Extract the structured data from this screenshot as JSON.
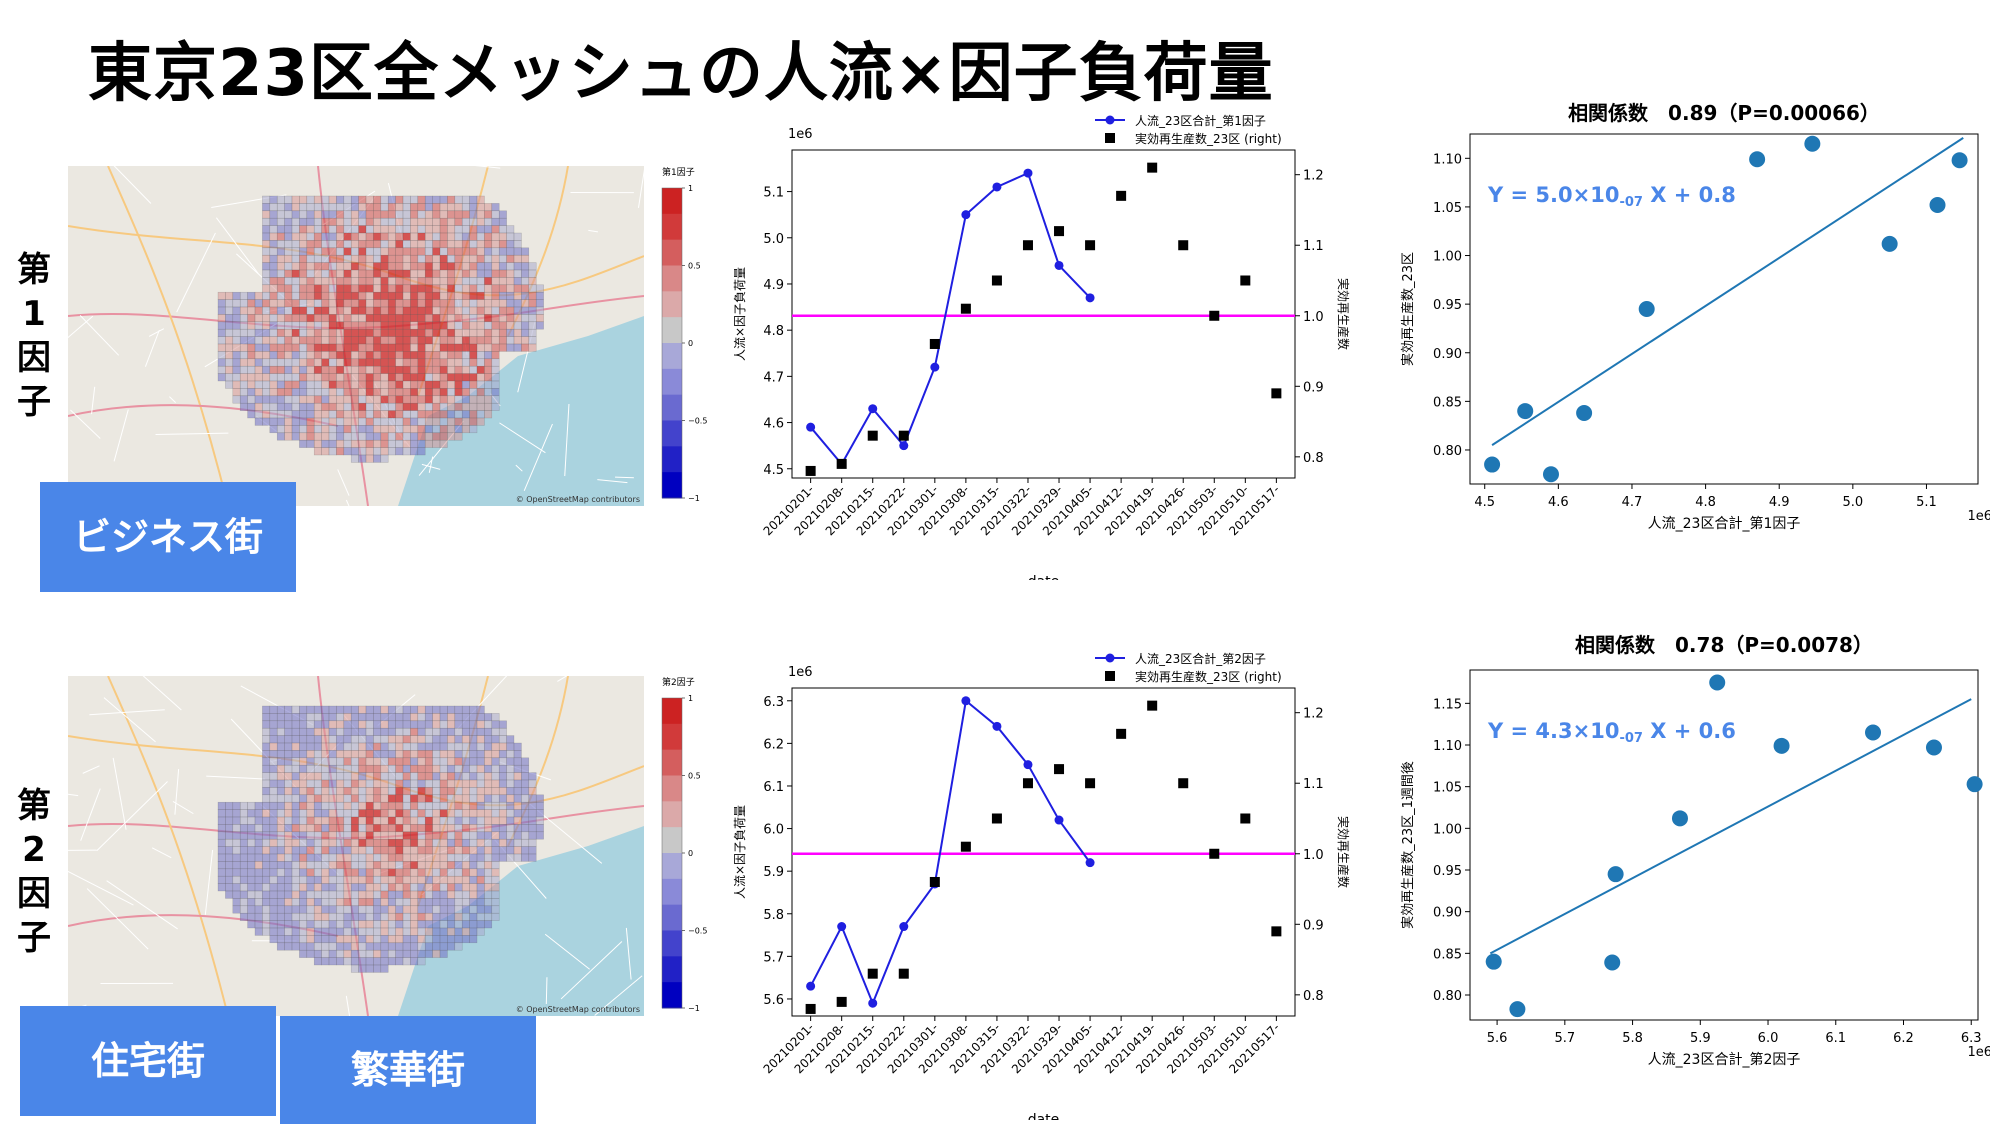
{
  "title": "東京23区全メッシュの人流×因子負荷量",
  "colors": {
    "line": "#1f1fe0",
    "hline": "#ff00ff",
    "scatter": "#1f77b4",
    "callout": "#4a86e8",
    "equation": "#4a86e8"
  },
  "rows": [
    {
      "factor_label": [
        "第",
        "1",
        "因",
        "子"
      ],
      "map": {
        "colorbar_title": "第1因子",
        "colorbar_ticks": [
          "1",
          "0.5",
          "0",
          "−0.5",
          "−1"
        ],
        "attribution": "© OpenStreetMap contributors",
        "callouts": [
          "ビジネス街"
        ]
      }
    },
    {
      "factor_label": [
        "第",
        "2",
        "因",
        "子"
      ],
      "map": {
        "colorbar_title": "第2因子",
        "colorbar_ticks": [
          "1",
          "0.5",
          "0",
          "−0.5",
          "−1"
        ],
        "attribution": "© OpenStreetMap contributors",
        "callouts": [
          "住宅街",
          "繁華街"
        ]
      }
    }
  ],
  "chart_data": [
    {
      "type": "line",
      "x": [
        "20210201-",
        "20210208-",
        "20210215-",
        "20210222-",
        "20210301-",
        "20210308-",
        "20210315-",
        "20210322-",
        "20210329-",
        "20210405-",
        "20210412-",
        "20210419-",
        "20210426-",
        "20210503-",
        "20210510-",
        "20210517-"
      ],
      "xlabel": "date",
      "ylabel": "人流×因子負荷量",
      "y2label": "実効再生産数",
      "offset_label": "1e6",
      "yticks": [
        "4.5",
        "4.6",
        "4.7",
        "4.8",
        "4.9",
        "5.0",
        "5.1"
      ],
      "ylim": [
        4.48,
        5.19
      ],
      "y2ticks": [
        "0.8",
        "0.9",
        "1.0",
        "1.1",
        "1.2"
      ],
      "y2lim": [
        0.77,
        1.235
      ],
      "hline_right": 1.0,
      "legend": [
        "人流_23区合計_第1因子",
        "実効再生産数_23区 (right)"
      ],
      "series": [
        {
          "name": "人流_23区合計_第1因子",
          "axis": "left",
          "values": [
            4.59,
            4.51,
            4.63,
            4.55,
            4.72,
            5.05,
            5.11,
            5.14,
            4.94,
            4.87,
            null,
            null,
            null,
            null,
            null,
            null
          ]
        },
        {
          "name": "実効再生産数_23区 (right)",
          "axis": "right",
          "values": [
            0.78,
            0.79,
            0.83,
            0.83,
            0.96,
            1.01,
            1.05,
            1.1,
            1.12,
            1.1,
            1.17,
            1.21,
            1.1,
            1.0,
            1.05,
            0.89
          ]
        }
      ]
    },
    {
      "type": "scatter",
      "title": "相関係数　0.89（P=0.00066）",
      "xlabel": "人流_23区合計_第1因子",
      "ylabel": "実効再生産数_23区",
      "offset_label": "1e6",
      "xticks": [
        "4.5",
        "4.6",
        "4.7",
        "4.8",
        "4.9",
        "5.0",
        "5.1"
      ],
      "xlim": [
        4.48,
        5.17
      ],
      "yticks": [
        "0.80",
        "0.85",
        "0.90",
        "0.95",
        "1.00",
        "1.05",
        "1.10"
      ],
      "ylim": [
        0.765,
        1.125
      ],
      "equation": {
        "lhs": "Y = 5.0×10",
        "exp": "-07",
        "rhs": " X + 0.8"
      },
      "fit": {
        "x": [
          4.51,
          5.15
        ],
        "y": [
          0.805,
          1.121
        ]
      },
      "points": [
        [
          4.51,
          0.785
        ],
        [
          4.555,
          0.84
        ],
        [
          4.59,
          0.775
        ],
        [
          4.635,
          0.838
        ],
        [
          4.72,
          0.945
        ],
        [
          4.87,
          1.099
        ],
        [
          4.945,
          1.115
        ],
        [
          5.05,
          1.012
        ],
        [
          5.115,
          1.052
        ],
        [
          5.145,
          1.098
        ]
      ]
    },
    {
      "type": "line",
      "x": [
        "20210201-",
        "20210208-",
        "20210215-",
        "20210222-",
        "20210301-",
        "20210308-",
        "20210315-",
        "20210322-",
        "20210329-",
        "20210405-",
        "20210412-",
        "20210419-",
        "20210426-",
        "20210503-",
        "20210510-",
        "20210517-"
      ],
      "xlabel": "date",
      "ylabel": "人流×因子負荷量",
      "y2label": "実効再生産数",
      "offset_label": "1e6",
      "yticks": [
        "5.6",
        "5.7",
        "5.8",
        "5.9",
        "6.0",
        "6.1",
        "6.2",
        "6.3"
      ],
      "ylim": [
        5.56,
        6.33
      ],
      "y2ticks": [
        "0.8",
        "0.9",
        "1.0",
        "1.1",
        "1.2"
      ],
      "y2lim": [
        0.77,
        1.235
      ],
      "hline_right": 1.0,
      "legend": [
        "人流_23区合計_第2因子",
        "実効再生産数_23区 (right)"
      ],
      "series": [
        {
          "name": "人流_23区合計_第2因子",
          "axis": "left",
          "values": [
            5.63,
            5.77,
            5.59,
            5.77,
            5.87,
            6.3,
            6.24,
            6.15,
            6.02,
            5.92,
            null,
            null,
            null,
            null,
            null,
            null
          ]
        },
        {
          "name": "実効再生産数_23区 (right)",
          "axis": "right",
          "values": [
            0.78,
            0.79,
            0.83,
            0.83,
            0.96,
            1.01,
            1.05,
            1.1,
            1.12,
            1.1,
            1.17,
            1.21,
            1.1,
            1.0,
            1.05,
            0.89
          ]
        }
      ]
    },
    {
      "type": "scatter",
      "title": "相関係数　0.78（P=0.0078）",
      "xlabel": "人流_23区合計_第2因子",
      "ylabel": "実効再生産数_23区_1週間後",
      "offset_label": "1e6",
      "xticks": [
        "5.6",
        "5.7",
        "5.8",
        "5.9",
        "6.0",
        "6.1",
        "6.2",
        "6.3"
      ],
      "xlim": [
        5.56,
        6.31
      ],
      "yticks": [
        "0.80",
        "0.85",
        "0.90",
        "0.95",
        "1.00",
        "1.05",
        "1.10",
        "1.15"
      ],
      "ylim": [
        0.77,
        1.19
      ],
      "equation": {
        "lhs": "Y = 4.3×10",
        "exp": "-07",
        "rhs": " X + 0.6"
      },
      "fit": {
        "x": [
          5.59,
          6.3
        ],
        "y": [
          0.85,
          1.155
        ]
      },
      "points": [
        [
          5.595,
          0.84
        ],
        [
          5.63,
          0.783
        ],
        [
          5.775,
          0.945
        ],
        [
          5.77,
          0.839
        ],
        [
          5.87,
          1.012
        ],
        [
          5.925,
          1.175
        ],
        [
          6.02,
          1.099
        ],
        [
          6.155,
          1.115
        ],
        [
          6.245,
          1.097
        ],
        [
          6.305,
          1.053
        ]
      ]
    }
  ]
}
